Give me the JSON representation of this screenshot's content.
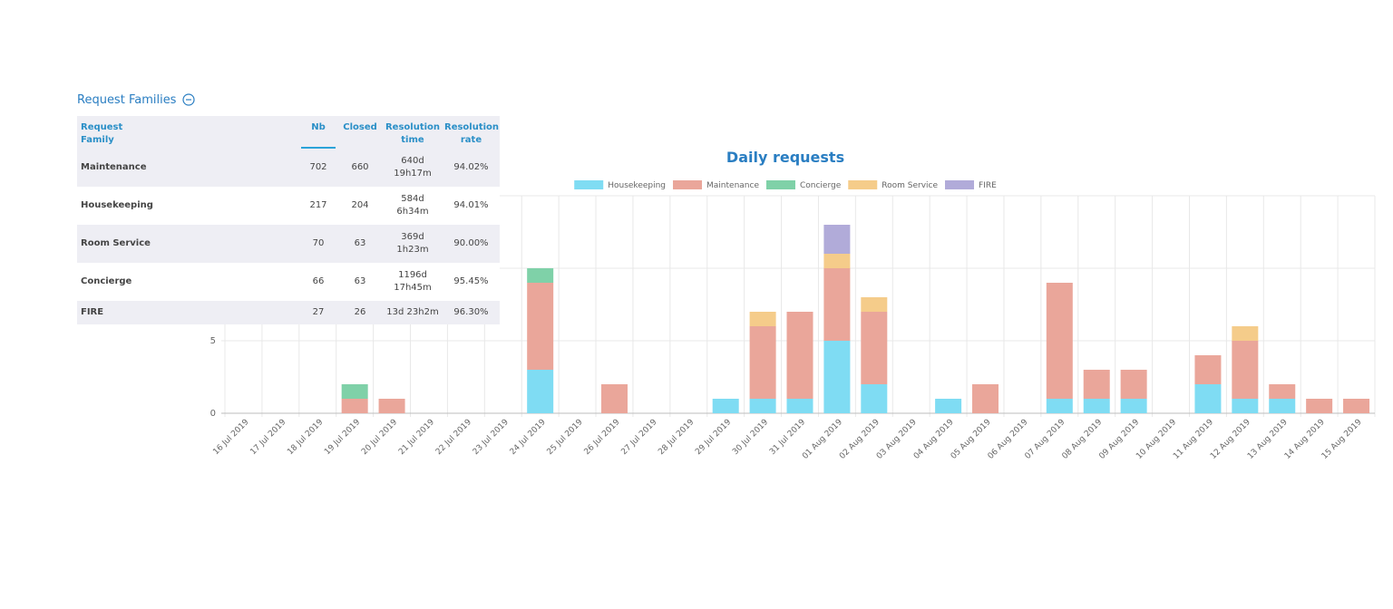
{
  "panel": {
    "title": "Request Families",
    "columns": [
      "Request\nFamily",
      "Nb",
      "Closed",
      "Resolution\ntime",
      "Resolution\nrate"
    ],
    "rows": [
      {
        "family": "Maintenance",
        "nb": "702",
        "closed": "660",
        "time": "640d\n19h17m",
        "rate": "94.02%"
      },
      {
        "family": "Housekeeping",
        "nb": "217",
        "closed": "204",
        "time": "584d\n6h34m",
        "rate": "94.01%"
      },
      {
        "family": "Room Service",
        "nb": "70",
        "closed": "63",
        "time": "369d\n1h23m",
        "rate": "90.00%"
      },
      {
        "family": "Concierge",
        "nb": "66",
        "closed": "63",
        "time": "1196d\n17h45m",
        "rate": "95.45%"
      },
      {
        "family": "FIRE",
        "nb": "27",
        "closed": "26",
        "time": "13d 23h2m",
        "rate": "96.30%"
      }
    ]
  },
  "chart_data": {
    "type": "bar",
    "stacked": true,
    "title": "Daily requests",
    "legend_position": "top-center",
    "grid": true,
    "ylim": [
      0,
      15
    ],
    "yticks": [
      0,
      5
    ],
    "categories": [
      "16 Jul 2019",
      "17 Jul 2019",
      "18 Jul 2019",
      "19 Jul 2019",
      "20 Jul 2019",
      "21 Jul 2019",
      "22 Jul 2019",
      "23 Jul 2019",
      "24 Jul 2019",
      "25 Jul 2019",
      "26 Jul 2019",
      "27 Jul 2019",
      "28 Jul 2019",
      "29 Jul 2019",
      "30 Jul 2019",
      "31 Jul 2019",
      "01 Aug 2019",
      "02 Aug 2019",
      "03 Aug 2019",
      "04 Aug 2019",
      "05 Aug 2019",
      "06 Aug 2019",
      "07 Aug 2019",
      "08 Aug 2019",
      "09 Aug 2019",
      "10 Aug 2019",
      "11 Aug 2019",
      "12 Aug 2019",
      "13 Aug 2019",
      "14 Aug 2019",
      "15 Aug 2019"
    ],
    "series": [
      {
        "name": "Housekeeping",
        "color": "#7fdcf3",
        "values": [
          0,
          0,
          0,
          0,
          0,
          0,
          0,
          0,
          3,
          0,
          0,
          0,
          0,
          1,
          1,
          1,
          5,
          2,
          0,
          1,
          0,
          0,
          1,
          1,
          1,
          0,
          2,
          1,
          1,
          0,
          0
        ]
      },
      {
        "name": "Maintenance",
        "color": "#eaa69a",
        "values": [
          0,
          0,
          0,
          1,
          1,
          0,
          0,
          0,
          6,
          0,
          2,
          0,
          0,
          0,
          5,
          6,
          5,
          5,
          0,
          0,
          2,
          0,
          8,
          2,
          2,
          0,
          2,
          4,
          1,
          1,
          1
        ]
      },
      {
        "name": "Concierge",
        "color": "#7fd1a8",
        "values": [
          0,
          0,
          0,
          1,
          0,
          0,
          0,
          0,
          1,
          0,
          0,
          0,
          0,
          0,
          0,
          0,
          0,
          0,
          0,
          0,
          0,
          0,
          0,
          0,
          0,
          0,
          0,
          0,
          0,
          0,
          0
        ]
      },
      {
        "name": "Room Service",
        "color": "#f5cc8a",
        "values": [
          0,
          0,
          0,
          0,
          0,
          0,
          0,
          0,
          0,
          0,
          0,
          0,
          0,
          0,
          1,
          0,
          1,
          1,
          0,
          0,
          0,
          0,
          0,
          0,
          0,
          0,
          0,
          1,
          0,
          0,
          0
        ]
      },
      {
        "name": "FIRE",
        "color": "#b1abd9",
        "values": [
          0,
          0,
          0,
          0,
          0,
          0,
          0,
          0,
          0,
          0,
          0,
          0,
          0,
          0,
          0,
          0,
          2,
          0,
          0,
          0,
          0,
          0,
          0,
          0,
          0,
          0,
          0,
          0,
          0,
          0,
          0
        ]
      }
    ]
  }
}
